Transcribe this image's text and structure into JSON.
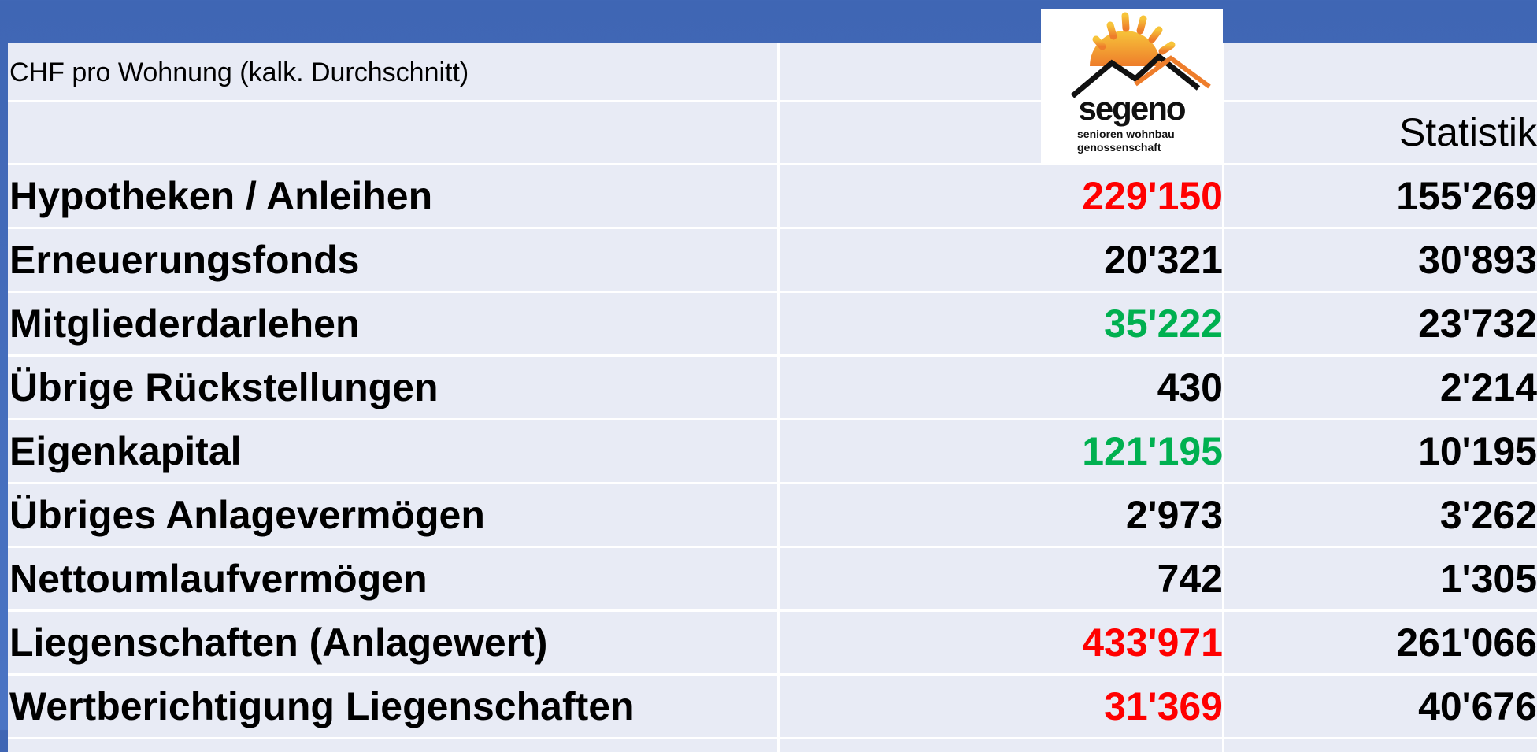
{
  "header": {
    "caption": "CHF pro Wohnung (kalk. Durchschnitt)",
    "column": "Statistik"
  },
  "logo": {
    "name": "segeno",
    "tagline": [
      "senioren wohnbau",
      "genossenschaft"
    ]
  },
  "table": {
    "rows": [
      {
        "label": "Hypotheken / Anleihen",
        "segeno": "229'150",
        "statistik": "155'269",
        "color": "#ff0000"
      },
      {
        "label": "Erneuerungsfonds",
        "segeno": "20'321",
        "statistik": "30'893",
        "color": "#000000"
      },
      {
        "label": "Mitgliederdarlehen",
        "segeno": "35'222",
        "statistik": "23'732",
        "color": "#00b050"
      },
      {
        "label": "Übrige Rückstellungen",
        "segeno": "430",
        "statistik": "2'214",
        "color": "#000000"
      },
      {
        "label": "Eigenkapital",
        "segeno": "121'195",
        "statistik": "10'195",
        "color": "#00b050"
      },
      {
        "label": "Übriges Anlagevermögen",
        "segeno": "2'973",
        "statistik": "3'262",
        "color": "#000000"
      },
      {
        "label": "Nettoumlaufvermögen",
        "segeno": "742",
        "statistik": "1'305",
        "color": "#000000"
      },
      {
        "label": "Liegenschaften (Anlagewert)",
        "segeno": "433'971",
        "statistik": "261'066",
        "color": "#ff0000"
      },
      {
        "label": "Wertberichtigung Liegenschaften",
        "segeno": "31'369",
        "statistik": "40'676",
        "color": "#ff0000"
      }
    ]
  }
}
